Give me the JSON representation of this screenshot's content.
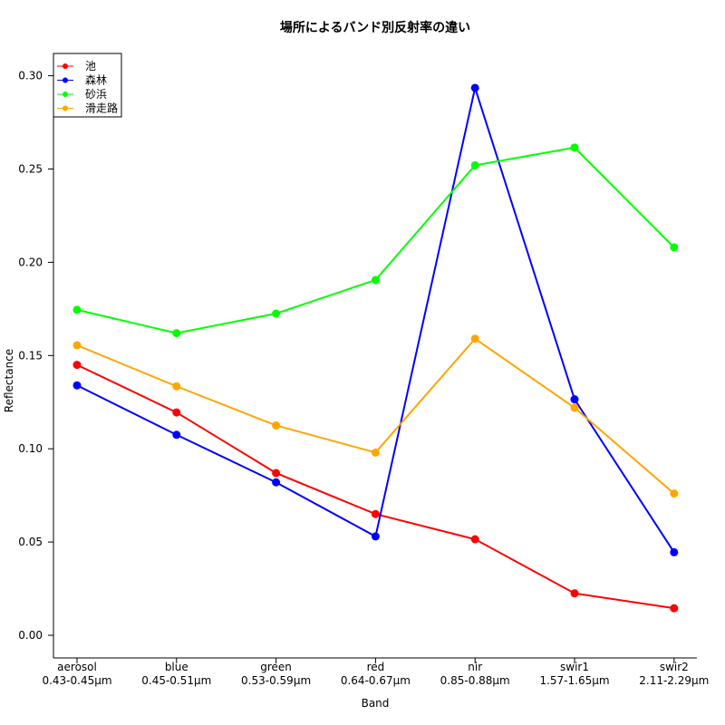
{
  "chart_data": {
    "type": "line",
    "title": "場所によるバンド別反射率の違い",
    "xlabel": "Band",
    "ylabel": "Reflectance",
    "categories": [
      "aerosol",
      "blue",
      "green",
      "red",
      "nir",
      "swir1",
      "swir2"
    ],
    "category_ranges": [
      "0.43-0.45µm",
      "0.45-0.51µm",
      "0.53-0.59µm",
      "0.64-0.67µm",
      "0.85-0.88µm",
      "1.57-1.65µm",
      "2.11-2.29µm"
    ],
    "ylim": [
      0.0,
      0.3
    ],
    "y_ticks": [
      "0.00",
      "0.05",
      "0.10",
      "0.15",
      "0.20",
      "0.25",
      "0.30"
    ],
    "grid": false,
    "legend_position": "top-left",
    "series": [
      {
        "name": "池",
        "color": "#ff0000",
        "values": [
          0.145,
          0.1195,
          0.087,
          0.065,
          0.0515,
          0.0225,
          0.0145
        ]
      },
      {
        "name": "森林",
        "color": "#0000ff",
        "values": [
          0.134,
          0.1075,
          0.082,
          0.053,
          0.2935,
          0.1265,
          0.0445
        ]
      },
      {
        "name": "砂浜",
        "color": "#00ff00",
        "values": [
          0.1745,
          0.162,
          0.1725,
          0.1905,
          0.252,
          0.2615,
          0.208
        ]
      },
      {
        "name": "滑走路",
        "color": "#ffa500",
        "values": [
          0.1555,
          0.1335,
          0.1125,
          0.098,
          0.159,
          0.122,
          0.076
        ]
      }
    ]
  }
}
